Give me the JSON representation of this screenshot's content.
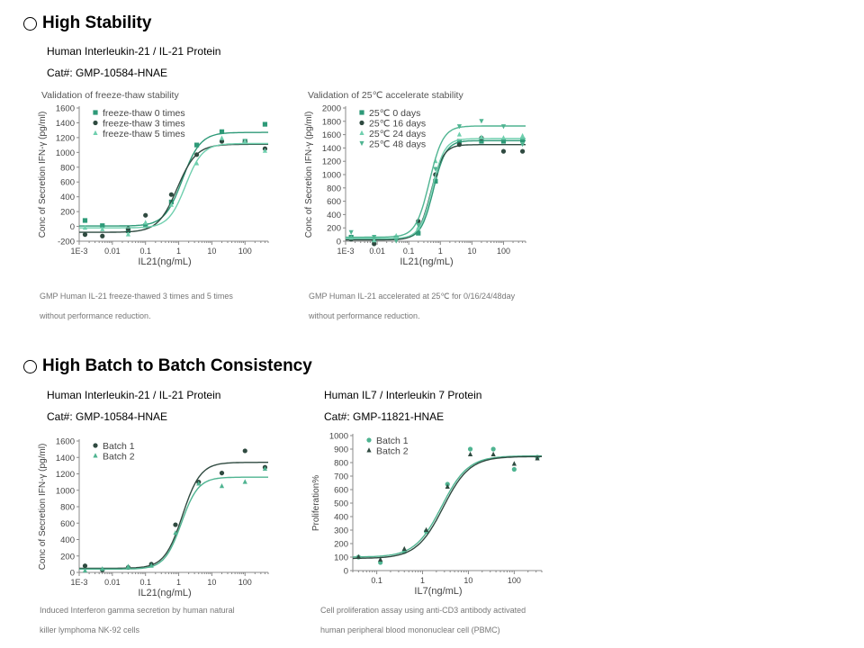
{
  "sections": [
    {
      "title": "High Stability"
    },
    {
      "title": "High Batch to Batch Consistency"
    }
  ],
  "products": {
    "stability": {
      "name": "Human Interleukin-21  / IL-21 Protein",
      "cat": "Cat#: GMP-10584-HNAE"
    },
    "batch_left": {
      "name": "Human Interleukin-21  / IL-21 Protein",
      "cat": "Cat#: GMP-10584-HNAE"
    },
    "batch_right": {
      "name": "Human IL7 / Interleukin 7 Protein",
      "cat": "Cat#: GMP-11821-HNAE"
    }
  },
  "captions": {
    "c1a": "GMP  Human  IL-21  freeze-thawed 3 times and 5 times",
    "c1b": "without performance reduction.",
    "c2a": "GMP  Human  IL-21  accelerated at 25℃ for 0/16/24/48day",
    "c2b": "without performance reduction.",
    "c3a": "Induced Interferon gamma  secretion by human natural",
    "c3b": "killer lymphoma NK-92 cells",
    "c4a": "Cell proliferation assay using anti-CD3  antibody activated",
    "c4b": "human peripheral blood mononuclear cell (PBMC)"
  },
  "colors": {
    "dark": "#2f4a40",
    "green": "#2e9a78",
    "light": "#6fcfae",
    "mid": "#4fb491"
  },
  "chart_data": [
    {
      "type": "scatter",
      "title": "Validation of freeze-thaw stability",
      "xlabel": "IL21(ng/mL)",
      "ylabel": "Conc of Secretion IFN-γ (pg/ml)",
      "xscale": "log",
      "xlim": [
        0.001,
        500
      ],
      "ylim": [
        -200,
        1600
      ],
      "x_ticks": [
        {
          "v": 0.001,
          "label": "1E-3"
        },
        {
          "v": 0.01,
          "label": "0.01"
        },
        {
          "v": 0.1,
          "label": "0.1"
        },
        {
          "v": 1,
          "label": "1"
        },
        {
          "v": 10,
          "label": "10"
        },
        {
          "v": 100,
          "label": "100"
        }
      ],
      "y_ticks": [
        {
          "v": -200,
          "label": "-200"
        },
        {
          "v": 0,
          "label": "0"
        },
        {
          "v": 200,
          "label": "200"
        },
        {
          "v": 400,
          "label": "400"
        },
        {
          "v": 600,
          "label": "600"
        },
        {
          "v": 800,
          "label": "800"
        },
        {
          "v": 1000,
          "label": "1000"
        },
        {
          "v": 1200,
          "label": "1200"
        },
        {
          "v": 1400,
          "label": "1400"
        },
        {
          "v": 1600,
          "label": "1600"
        }
      ],
      "legend": "top-left",
      "series": [
        {
          "name": "freeze-thaw 0 times",
          "color": "#2e9a78",
          "marker": "square",
          "x": [
            0.0015,
            0.005,
            0.03,
            0.1,
            0.6,
            3.5,
            20,
            100,
            400
          ],
          "y": [
            80,
            10,
            -60,
            10,
            330,
            1100,
            1280,
            1150,
            1380
          ],
          "fit": {
            "bottom": 5,
            "top": 1270,
            "ec50": 1.3,
            "hill": 1.6
          }
        },
        {
          "name": "freeze-thaw 3 times",
          "color": "#2f4a40",
          "marker": "circle",
          "x": [
            0.0015,
            0.005,
            0.03,
            0.1,
            0.6,
            3.5,
            20,
            100,
            400
          ],
          "y": [
            -110,
            -130,
            -30,
            150,
            430,
            970,
            1150,
            1140,
            1050
          ],
          "fit": {
            "bottom": -80,
            "top": 1110,
            "ec50": 0.9,
            "hill": 1.5
          }
        },
        {
          "name": "freeze-thaw 5 times",
          "color": "#6fcfae",
          "marker": "triangle",
          "x": [
            0.0015,
            0.005,
            0.03,
            0.1,
            0.6,
            3.5,
            20,
            100,
            400
          ],
          "y": [
            -20,
            -40,
            -110,
            50,
            290,
            850,
            1190,
            1150,
            1020
          ],
          "fit": {
            "bottom": -20,
            "top": 1120,
            "ec50": 1.6,
            "hill": 1.7
          }
        }
      ]
    },
    {
      "type": "scatter",
      "title": "Validation of 25℃ accelerate stability",
      "xlabel": "IL21(ng/mL)",
      "ylabel": "Conc of Secretion IFN-γ (pg/ml)",
      "xscale": "log",
      "xlim": [
        0.001,
        500
      ],
      "ylim": [
        0,
        2000
      ],
      "x_ticks": [
        {
          "v": 0.001,
          "label": "1E-3"
        },
        {
          "v": 0.01,
          "label": "0.01"
        },
        {
          "v": 0.1,
          "label": "0.1"
        },
        {
          "v": 1,
          "label": "1"
        },
        {
          "v": 10,
          "label": "10"
        },
        {
          "v": 100,
          "label": "100"
        }
      ],
      "y_ticks": [
        {
          "v": 0,
          "label": "0"
        },
        {
          "v": 200,
          "label": "200"
        },
        {
          "v": 400,
          "label": "400"
        },
        {
          "v": 600,
          "label": "600"
        },
        {
          "v": 800,
          "label": "800"
        },
        {
          "v": 1000,
          "label": "1000"
        },
        {
          "v": 1200,
          "label": "1200"
        },
        {
          "v": 1400,
          "label": "1400"
        },
        {
          "v": 1600,
          "label": "1600"
        },
        {
          "v": 1800,
          "label": "1800"
        },
        {
          "v": 2000,
          "label": "2000"
        }
      ],
      "legend": "top-left",
      "series": [
        {
          "name": "25℃ 0 days",
          "color": "#2e9a78",
          "marker": "square",
          "x": [
            0.0015,
            0.008,
            0.04,
            0.2,
            0.7,
            4,
            20,
            100,
            400
          ],
          "y": [
            60,
            30,
            50,
            120,
            900,
            1500,
            1500,
            1500,
            1520
          ],
          "fit": {
            "bottom": 30,
            "top": 1510,
            "ec50": 0.6,
            "hill": 2.2
          }
        },
        {
          "name": "25℃ 16 days",
          "color": "#2f4a40",
          "marker": "circle",
          "x": [
            0.0015,
            0.008,
            0.04,
            0.2,
            0.7,
            4,
            20,
            100,
            400
          ],
          "y": [
            30,
            -40,
            40,
            300,
            1000,
            1450,
            1550,
            1350,
            1350
          ],
          "fit": {
            "bottom": 20,
            "top": 1450,
            "ec50": 0.5,
            "hill": 2.2
          }
        },
        {
          "name": "25℃ 24 days",
          "color": "#6fcfae",
          "marker": "triangle",
          "x": [
            0.0015,
            0.008,
            0.04,
            0.2,
            0.7,
            4,
            20,
            100,
            400
          ],
          "y": [
            50,
            10,
            80,
            200,
            1200,
            1600,
            1560,
            1550,
            1580
          ],
          "fit": {
            "bottom": 40,
            "top": 1540,
            "ec50": 0.55,
            "hill": 2.2
          }
        },
        {
          "name": "25℃ 48 days",
          "color": "#4fb491",
          "marker": "triangle-down",
          "x": [
            0.0015,
            0.008,
            0.04,
            0.2,
            0.7,
            4,
            20,
            100,
            400
          ],
          "y": [
            130,
            60,
            0,
            240,
            1080,
            1720,
            1800,
            1720,
            1450
          ],
          "fit": {
            "bottom": 60,
            "top": 1730,
            "ec50": 0.45,
            "hill": 2.0
          }
        }
      ]
    },
    {
      "type": "scatter",
      "title": "",
      "xlabel": "IL21(ng/mL)",
      "ylabel": "Conc of Secretion IFN-γ (pg/ml)",
      "xscale": "log",
      "xlim": [
        0.001,
        500
      ],
      "ylim": [
        0,
        1600
      ],
      "x_ticks": [
        {
          "v": 0.001,
          "label": "1E-3"
        },
        {
          "v": 0.01,
          "label": "0.01"
        },
        {
          "v": 0.1,
          "label": "0.1"
        },
        {
          "v": 1,
          "label": "1"
        },
        {
          "v": 10,
          "label": "10"
        },
        {
          "v": 100,
          "label": "100"
        }
      ],
      "y_ticks": [
        {
          "v": 0,
          "label": "0"
        },
        {
          "v": 200,
          "label": "200"
        },
        {
          "v": 400,
          "label": "400"
        },
        {
          "v": 600,
          "label": "600"
        },
        {
          "v": 800,
          "label": "800"
        },
        {
          "v": 1000,
          "label": "1000"
        },
        {
          "v": 1200,
          "label": "1200"
        },
        {
          "v": 1400,
          "label": "1400"
        },
        {
          "v": 1600,
          "label": "1600"
        }
      ],
      "legend": "top-left",
      "series": [
        {
          "name": "Batch 1",
          "color": "#2f4a40",
          "marker": "circle",
          "x": [
            0.0015,
            0.005,
            0.03,
            0.15,
            0.8,
            4,
            20,
            100,
            400
          ],
          "y": [
            80,
            30,
            60,
            100,
            580,
            1100,
            1210,
            1480,
            1280
          ],
          "fit": {
            "bottom": 50,
            "top": 1340,
            "ec50": 1.3,
            "hill": 1.6
          }
        },
        {
          "name": "Batch 2",
          "color": "#4fb491",
          "marker": "triangle",
          "x": [
            0.0015,
            0.005,
            0.03,
            0.15,
            0.8,
            4,
            20,
            100,
            400
          ],
          "y": [
            20,
            40,
            70,
            80,
            480,
            1080,
            1050,
            1100,
            1260
          ],
          "fit": {
            "bottom": 40,
            "top": 1160,
            "ec50": 1.2,
            "hill": 1.7
          }
        }
      ]
    },
    {
      "type": "scatter",
      "title": "",
      "xlabel": "IL7(ng/mL)",
      "ylabel": "Proliferation%",
      "xscale": "log",
      "xlim": [
        0.03,
        400
      ],
      "ylim": [
        0,
        1000
      ],
      "x_ticks": [
        {
          "v": 0.1,
          "label": "0.1"
        },
        {
          "v": 1,
          "label": "1"
        },
        {
          "v": 10,
          "label": "10"
        },
        {
          "v": 100,
          "label": "100"
        }
      ],
      "y_ticks": [
        {
          "v": 0,
          "label": "0"
        },
        {
          "v": 100,
          "label": "100"
        },
        {
          "v": 200,
          "label": "200"
        },
        {
          "v": 300,
          "label": "300"
        },
        {
          "v": 400,
          "label": "400"
        },
        {
          "v": 500,
          "label": "500"
        },
        {
          "v": 600,
          "label": "600"
        },
        {
          "v": 700,
          "label": "700"
        },
        {
          "v": 800,
          "label": "800"
        },
        {
          "v": 900,
          "label": "900"
        },
        {
          "v": 1000,
          "label": "1000"
        }
      ],
      "legend": "top-left",
      "series": [
        {
          "name": "Batch 1",
          "color": "#4fb491",
          "marker": "circle",
          "x": [
            0.04,
            0.12,
            0.4,
            1.2,
            3.5,
            11,
            35,
            100,
            320
          ],
          "y": [
            100,
            60,
            140,
            290,
            640,
            900,
            900,
            750,
            840
          ],
          "fit": {
            "bottom": 100,
            "top": 850,
            "ec50": 2.6,
            "hill": 1.5
          }
        },
        {
          "name": "Batch 2",
          "color": "#2f4a40",
          "marker": "triangle",
          "x": [
            0.04,
            0.12,
            0.4,
            1.2,
            3.5,
            11,
            35,
            100,
            320
          ],
          "y": [
            100,
            80,
            160,
            300,
            620,
            860,
            860,
            790,
            830
          ],
          "fit": {
            "bottom": 90,
            "top": 845,
            "ec50": 2.8,
            "hill": 1.5
          }
        }
      ]
    }
  ]
}
